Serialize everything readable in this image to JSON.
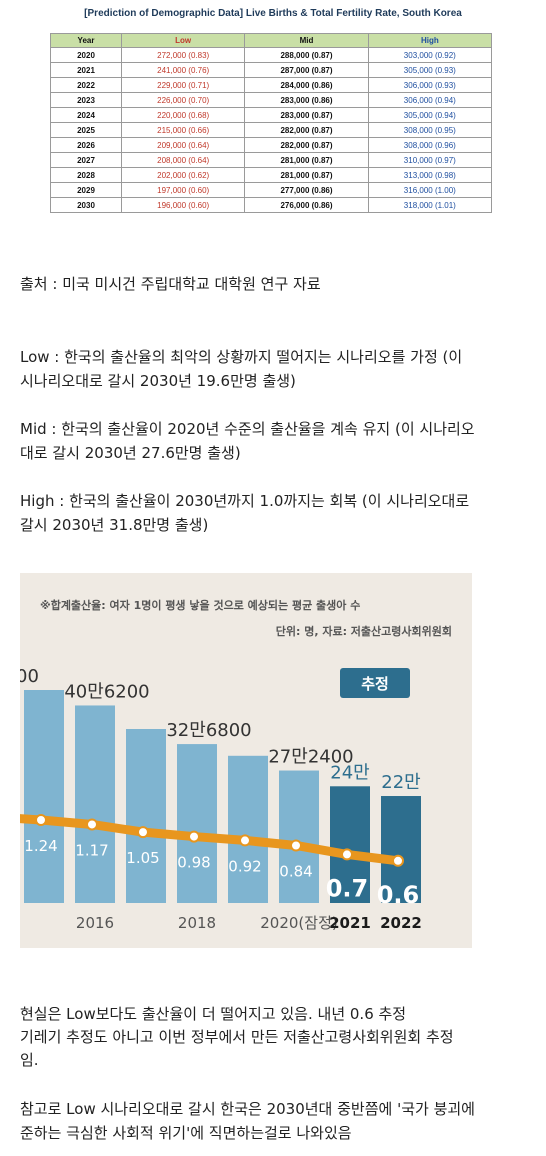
{
  "table": {
    "title": "[Prediction of Demographic Data] Live Births & Total Fertility Rate, South Korea",
    "headers": [
      "Year",
      "Low",
      "Mid",
      "High"
    ],
    "rows": [
      [
        "2020",
        "272,000 (0.83)",
        "288,000 (0.87)",
        "303,000 (0.92)"
      ],
      [
        "2021",
        "241,000 (0.76)",
        "287,000 (0.87)",
        "305,000 (0.93)"
      ],
      [
        "2022",
        "229,000 (0.71)",
        "284,000 (0.86)",
        "306,000 (0.93)"
      ],
      [
        "2023",
        "226,000 (0.70)",
        "283,000 (0.86)",
        "306,000 (0.94)"
      ],
      [
        "2024",
        "220,000 (0.68)",
        "283,000 (0.87)",
        "305,000 (0.94)"
      ],
      [
        "2025",
        "215,000 (0.66)",
        "282,000 (0.87)",
        "308,000 (0.95)"
      ],
      [
        "2026",
        "209,000 (0.64)",
        "282,000 (0.87)",
        "308,000 (0.96)"
      ],
      [
        "2027",
        "208,000 (0.64)",
        "281,000 (0.87)",
        "310,000 (0.97)"
      ],
      [
        "2028",
        "202,000 (0.62)",
        "281,000 (0.87)",
        "313,000 (0.98)"
      ],
      [
        "2029",
        "197,000 (0.60)",
        "277,000 (0.86)",
        "316,000 (1.00)"
      ],
      [
        "2030",
        "196,000 (0.60)",
        "276,000 (0.86)",
        "318,000 (1.01)"
      ]
    ]
  },
  "text": {
    "source": "출처 : 미국 미시건 주립대학교 대학원 연구 자료",
    "low_1": "Low : 한국의 출산율의 최악의 상황까지 떨어지는 시나리오를 가정 (이",
    "low_2": "시나리오대로 갈시 2030년 19.6만명 출생)",
    "mid_1": "Mid : 한국의 출산율이 2020년 수준의 출산율을 계속 유지 (이 시나리오",
    "mid_2": "대로 갈시 2030년 27.6만명 출생)",
    "high_1": "High : 한국의 출산율이 2030년까지 1.0까지는 회복 (이 시나리오대로",
    "high_2": "갈시 2030년 31.8만명 출생)",
    "reality_1": "현실은 Low보다도 출산율이 더 떨어지고 있음. 내년 0.6  추정",
    "reality_2": "기레기 추정도 아니고 이번 정부에서 만든 저출산고령사회위원회 추정",
    "reality_3": "임.",
    "ref_1": "참고로 Low 시나리오대로 갈시 한국은 2030년대 중반쯤에 '국가 붕괴에",
    "ref_2": "준하는 극심한 사회적 위기'에 직면하는걸로 나와있음"
  },
  "chart_data": {
    "type": "bar",
    "note": "※합계출산율: 여자 1명이 평생 낳을 것으로 예상되는 평균 출생아 수",
    "unit": "단위: 명, 자료: 저출산고령사회위원회",
    "estimate_badge": "추정",
    "categories": [
      "",
      "2016",
      "",
      "2018",
      "",
      "2020(잠정)",
      "2021",
      "2022"
    ],
    "tick_labels": [
      "2016",
      "2018",
      "2020(잠정)",
      "2021",
      "2022"
    ],
    "birth_labels": [
      "00",
      "40만6200",
      "",
      "32만6800",
      "",
      "27만2400",
      "24만",
      "22만"
    ],
    "births": [
      438000,
      406200,
      357800,
      326800,
      302700,
      272400,
      240000,
      220000
    ],
    "tfr": [
      1.24,
      1.17,
      1.05,
      0.98,
      0.92,
      0.84,
      0.7,
      0.6
    ],
    "tfr_labels": [
      "1.24",
      "1.17",
      "1.05",
      "0.98",
      "0.92",
      "0.84",
      "0.7",
      "0.6"
    ],
    "estimated": [
      false,
      false,
      false,
      false,
      false,
      false,
      true,
      true
    ],
    "colors": {
      "bar": "#7fb4d0",
      "bar_estimated": "#2d6e8e",
      "line": "#e8961e",
      "background": "#efeae3"
    }
  }
}
